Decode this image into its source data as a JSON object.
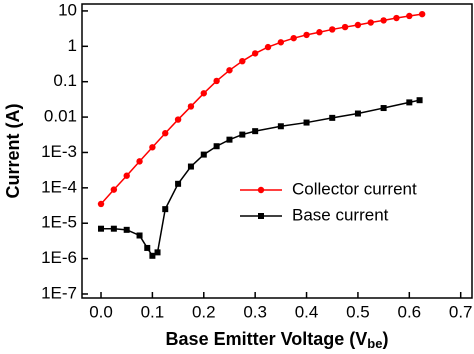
{
  "chart_data": {
    "type": "line",
    "log_y": true,
    "x_label": {
      "text": "Base Emitter Voltage (V",
      "subscript": "be",
      "close": ")"
    },
    "y_label": "Current (A)",
    "xlim": [
      -0.037,
      0.722
    ],
    "ylim": [
      7.7e-08,
      15.7
    ],
    "xticks": [
      {
        "value": 0,
        "label": "0.0"
      },
      0.1,
      0.2,
      0.3,
      0.4,
      0.5,
      0.6,
      0.7
    ],
    "yticks": [
      {
        "value": 1e-07,
        "label": "1E-7"
      },
      {
        "value": 1e-06,
        "label": "1E-6"
      },
      {
        "value": 1e-05,
        "label": "1E-5"
      },
      {
        "value": 0.0001,
        "label": "1E-4"
      },
      {
        "value": 0.001,
        "label": "1E-3"
      },
      0.01,
      0.1,
      1,
      10
    ],
    "legend_position": "center right",
    "series": [
      {
        "name": "Collector current",
        "color": "#ff0000",
        "marker": "circle",
        "x": [
          0,
          0.025,
          0.05,
          0.075,
          0.1,
          0.125,
          0.15,
          0.175,
          0.2,
          0.225,
          0.25,
          0.275,
          0.3,
          0.325,
          0.35,
          0.375,
          0.4,
          0.425,
          0.45,
          0.475,
          0.5,
          0.525,
          0.55,
          0.575,
          0.6,
          0.625
        ],
        "values": [
          3.5e-05,
          8.9e-05,
          0.00022,
          0.00056,
          0.0014,
          0.0035,
          0.0085,
          0.02,
          0.047,
          0.105,
          0.21,
          0.38,
          0.63,
          0.95,
          1.3,
          1.7,
          2.1,
          2.5,
          3.0,
          3.5,
          4.0,
          4.7,
          5.4,
          6.3,
          7.2,
          8.1
        ]
      },
      {
        "name": "Base current",
        "color": "#000000",
        "marker": "square",
        "x": [
          0,
          0.025,
          0.05,
          0.075,
          0.09,
          0.1,
          0.11,
          0.125,
          0.15,
          0.175,
          0.2,
          0.225,
          0.25,
          0.275,
          0.3,
          0.35,
          0.4,
          0.45,
          0.5,
          0.55,
          0.6,
          0.62
        ],
        "values": [
          7e-06,
          7e-06,
          6.5e-06,
          4.5e-06,
          2e-06,
          1.2e-06,
          1.5e-06,
          2.5e-05,
          0.00013,
          0.0004,
          0.00087,
          0.0015,
          0.0023,
          0.0032,
          0.004,
          0.0055,
          0.007,
          0.0095,
          0.0126,
          0.018,
          0.026,
          0.03
        ]
      }
    ]
  }
}
